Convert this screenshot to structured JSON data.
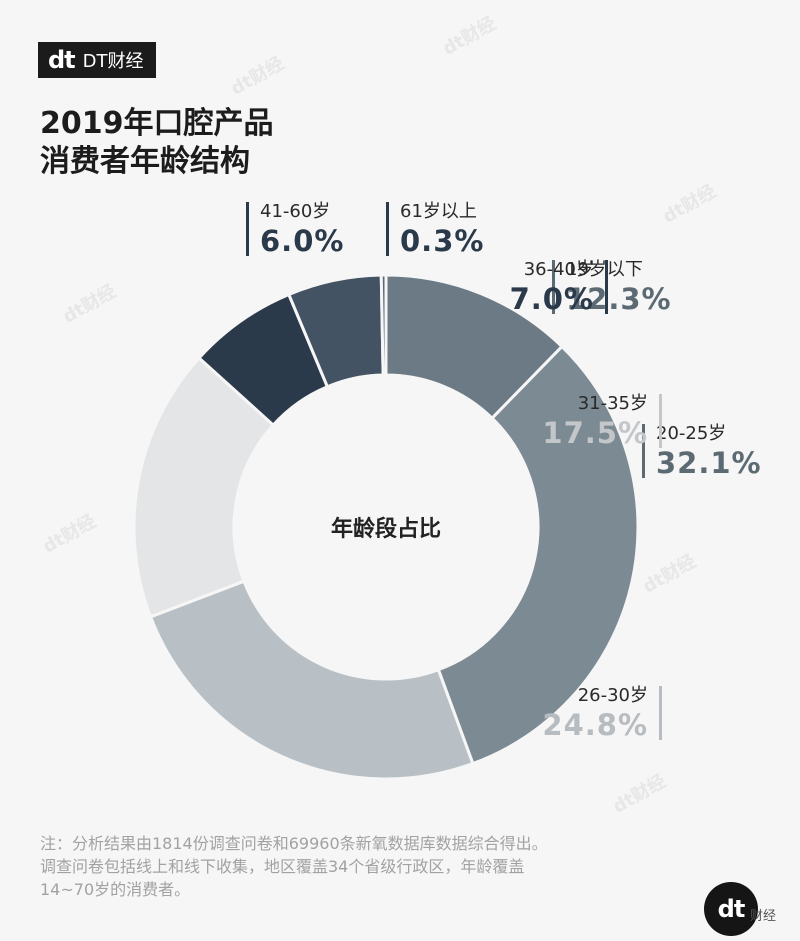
{
  "brand": {
    "mark": "dt",
    "name": "DT财经"
  },
  "title_line1": "2019年口腔产品",
  "title_line2": "消费者年龄结构",
  "center_label": "年龄段占比",
  "note_line1": "注：分析结果由1814份调查问卷和69960条新氧数据库数据综合得出。",
  "note_line2": "调查问卷包括线上和线下收集，地区覆盖34个省级行政区，年龄覆盖",
  "note_line3": "14~70岁的消费者。",
  "badge": {
    "mark": "dt",
    "text": "财经"
  },
  "watermark": "dt财经",
  "chart_data": {
    "type": "pie",
    "title": "2019年口腔产品消费者年龄结构",
    "center_label": "年龄段占比",
    "categories": [
      "19岁以下",
      "20-25岁",
      "26-30岁",
      "31-35岁",
      "36-40岁",
      "41-60岁",
      "61岁以上"
    ],
    "values": [
      12.3,
      32.1,
      24.8,
      17.5,
      7.0,
      6.0,
      0.3
    ],
    "value_labels": [
      "12.3%",
      "32.1%",
      "24.8%",
      "17.5%",
      "7.0%",
      "6.0%",
      "0.3%"
    ],
    "colors": [
      "#6b7a84",
      "#7c8a93",
      "#b9c0c5",
      "#e3e5e7",
      "#2b3a4a",
      "#435363",
      "#5a6875"
    ],
    "label_colors": [
      "#5c6a73",
      "#5c6a73",
      "#b6bcc0",
      "#c3c7ca",
      "#2b3a4a",
      "#2b3a4a",
      "#2b3a4a"
    ],
    "donut": true
  }
}
